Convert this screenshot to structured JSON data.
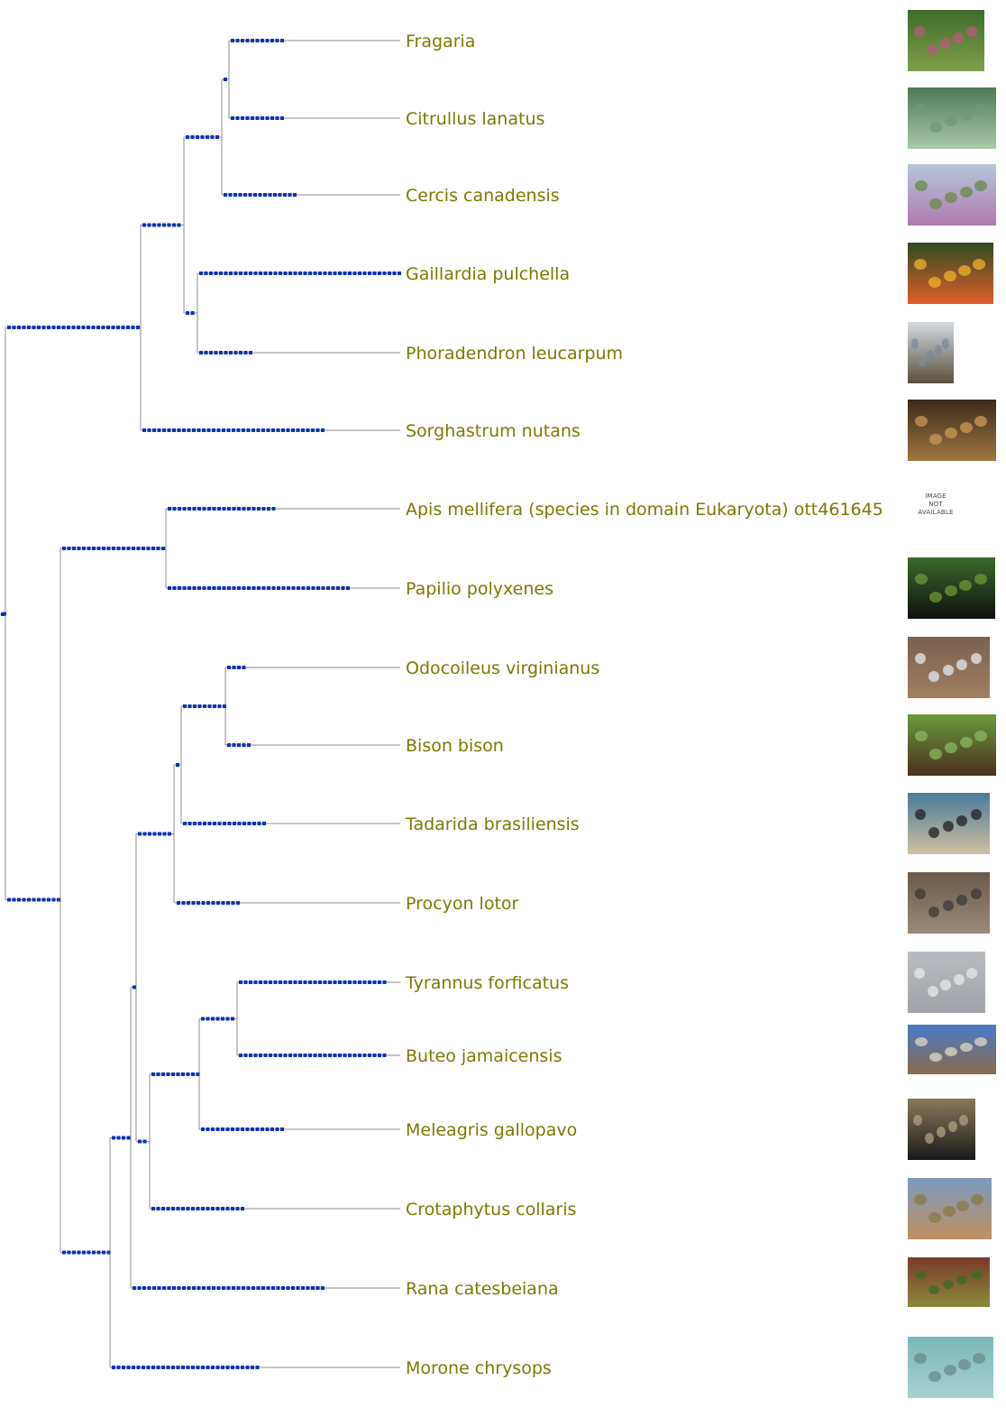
{
  "colors": {
    "branch": "#8c8c8c",
    "dots": "#0a34b4",
    "label": "#7a7a00"
  },
  "tree": {
    "newick": "((((((Fragaria,Citrullus lanatus),Cercis canadensis),(Gaillardia pulchella,Phoradendron leucarpum)),Sorghastrum nutans)),((Apis mellifera (species in domain Eukaryota) ott461645,Papilio polyxenes),((((Odocoileus virginianus,Bison bison),Tadarida brasiliensis),Procyon lotor),((((Tyrannus forficatus,Buteo jamaicensis),Meleagris gallopavo),Crotaphytus collaris),Rana catesbeiana)),Morone chrysops))",
    "leaves": [
      {
        "name": "Fragaria",
        "image": "pink-flower-photo"
      },
      {
        "name": "Citrullus lanatus",
        "image": "melon-leaves-photo"
      },
      {
        "name": "Cercis canadensis",
        "image": "redbud-trees-photo"
      },
      {
        "name": "Gaillardia pulchella",
        "image": "blanket-flower-photo"
      },
      {
        "name": "Phoradendron leucarpum",
        "image": "mistletoe-tree-photo"
      },
      {
        "name": "Sorghastrum nutans",
        "image": "indiangrass-photo"
      },
      {
        "name": "Apis mellifera (species in domain Eukaryota) ott461645",
        "image": "image-not-available",
        "image_text": [
          "IMAGE",
          "NOT",
          "AVAILABLE"
        ]
      },
      {
        "name": "Papilio polyxenes",
        "image": "swallowtail-butterfly-photo"
      },
      {
        "name": "Odocoileus virginianus",
        "image": "white-tailed-deer-photo"
      },
      {
        "name": "Bison bison",
        "image": "bison-photo"
      },
      {
        "name": "Tadarida brasiliensis",
        "image": "bats-sky-photo"
      },
      {
        "name": "Procyon lotor",
        "image": "raccoon-photo"
      },
      {
        "name": "Tyrannus forficatus",
        "image": "flycatcher-wire-photo"
      },
      {
        "name": "Buteo jamaicensis",
        "image": "hawk-branch-photo"
      },
      {
        "name": "Meleagris gallopavo",
        "image": "turkey-photo"
      },
      {
        "name": "Crotaphytus collaris",
        "image": "lizard-hand-photo"
      },
      {
        "name": "Rana catesbeiana",
        "image": "bullfrog-photo"
      },
      {
        "name": "Morone chrysops",
        "image": "bass-underwater-photo"
      }
    ]
  }
}
